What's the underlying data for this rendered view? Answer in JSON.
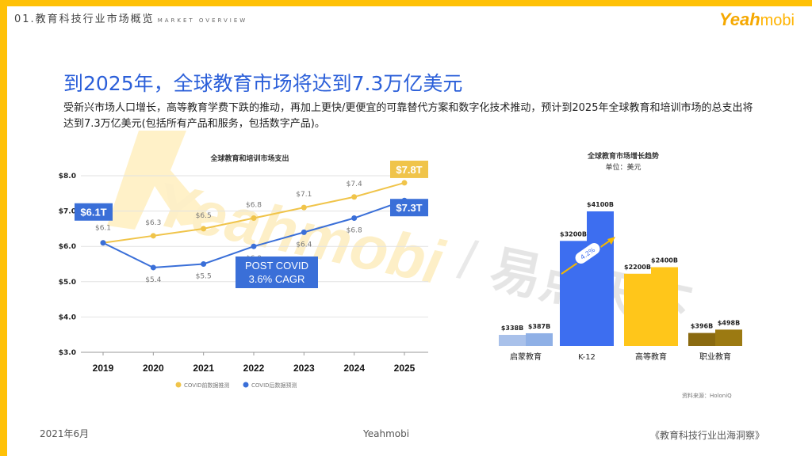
{
  "header": {
    "section": "01.教育科技行业市场概览",
    "section_en": "MARKET OVERVIEW",
    "logo_main": "Yeah",
    "logo_sub": "mobi"
  },
  "headline": "到2025年，全球教育市场将达到7.3万亿美元",
  "description": "受新兴市场人口增长，高等教育学费下跌的推动，再加上更快/更便宜的可靠替代方案和数字化技术推动，预计到2025年全球教育和培训市场的总支出将达到7.3万亿美元(包括所有产品和服务，包括数字产品)。",
  "watermark": {
    "text_en": "Yeahmobi",
    "text_cn": "易点天下",
    "slash": "/"
  },
  "chart_data": [
    {
      "type": "line",
      "title": "全球教育和培训市场支出",
      "x": [
        "2019",
        "2020",
        "2021",
        "2022",
        "2023",
        "2024",
        "2025"
      ],
      "ylim": [
        3.0,
        8.0
      ],
      "yticks": [
        3.0,
        4.0,
        5.0,
        6.0,
        7.0,
        8.0
      ],
      "ytick_labels": [
        "$3.0",
        "$4.0",
        "$5.0",
        "$6.0",
        "$7.0",
        "$8.0"
      ],
      "grid": true,
      "legend_position": "bottom",
      "series": [
        {
          "name": "COVID前数据推测",
          "color": "#f0c44a",
          "values": [
            6.1,
            6.3,
            6.5,
            6.8,
            7.1,
            7.4,
            7.8
          ],
          "labels": [
            "$6.1",
            "$6.3",
            "$6.5",
            "$6.8",
            "$7.1",
            "$7.4",
            "$7.8T"
          ]
        },
        {
          "name": "COVID后数据预测",
          "color": "#3a6fd8",
          "values": [
            6.1,
            5.4,
            5.5,
            6.0,
            6.4,
            6.8,
            7.3
          ],
          "labels": [
            "$6.1T",
            "$5.4",
            "$5.5",
            "$6.0",
            "$6.4",
            "$6.8",
            "$7.3T"
          ]
        }
      ],
      "annotation": {
        "line1": "POST COVID",
        "line2": "3.6% CAGR"
      }
    },
    {
      "type": "bar",
      "title": "全球教育市场增长趋势",
      "subtitle": "单位：美元",
      "categories": [
        "启蒙教育",
        "K-12",
        "高等教育",
        "职业教育"
      ],
      "series": [
        {
          "name": "2019",
          "values": [
            338,
            3200,
            2200,
            396
          ],
          "labels": [
            "$338B",
            "$3200B",
            "$2200B",
            "$396B"
          ]
        },
        {
          "name": "2025",
          "values": [
            387,
            4100,
            2400,
            498
          ],
          "labels": [
            "$387B",
            "$4100B",
            "$2400B",
            "$498B"
          ]
        }
      ],
      "category_colors": {
        "启蒙教育": [
          "#a9c1ea",
          "#8fb0e6"
        ],
        "K-12": [
          "#3d6ef0",
          "#3d6ef0"
        ],
        "高等教育": [
          "#ffc61a",
          "#ffc61a"
        ],
        "职业教育": [
          "#8a6a10",
          "#9c7a12"
        ]
      },
      "annotation": "4.2%",
      "source": "资料来源：HoloniQ"
    }
  ],
  "footer": {
    "date": "2021年6月",
    "brand": "Yeahmobi",
    "report": "《教育科技行业出海洞察》"
  }
}
